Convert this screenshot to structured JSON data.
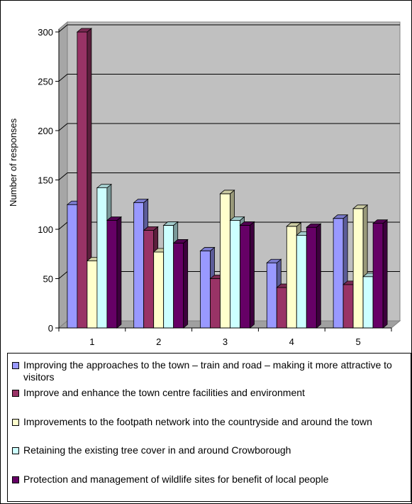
{
  "chart_data": {
    "type": "bar",
    "style": "3d-clustered-column",
    "categories": [
      "1",
      "2",
      "3",
      "4",
      "5"
    ],
    "series": [
      {
        "name": "Improving the approaches to the town – train and road – making it more attractive to visitors",
        "color": "#9999ff",
        "values": [
          125,
          127,
          78,
          66,
          111
        ]
      },
      {
        "name": "Improve and enhance the town centre facilities and environment",
        "color": "#993366",
        "values": [
          300,
          99,
          50,
          41,
          44
        ]
      },
      {
        "name": "Improvements to the footpath network into the countryside and around the town",
        "color": "#ffffcc",
        "values": [
          68,
          77,
          136,
          103,
          121
        ]
      },
      {
        "name": "Retaining the existing tree cover in and around Crowborough",
        "color": "#ccffff",
        "values": [
          142,
          104,
          109,
          94,
          52
        ]
      },
      {
        "name": "Protection and management of wildlife sites for benefit of local people",
        "color": "#660066",
        "values": [
          109,
          86,
          104,
          102,
          106
        ]
      }
    ],
    "ylabel": "Number of responses",
    "xlabel": "",
    "ylim": [
      0,
      300
    ],
    "yticks": [
      0,
      50,
      100,
      150,
      200,
      250,
      300
    ],
    "grid": true,
    "wall_color": "#c0c0c0",
    "legend_position": "bottom"
  }
}
